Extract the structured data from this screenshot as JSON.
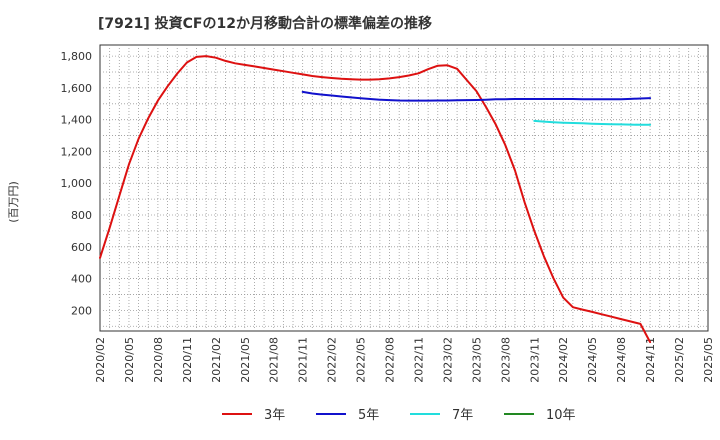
{
  "chart_data": {
    "type": "line",
    "title": "[7921]  投資CFの12か月移動合計の標準偏差の推移",
    "ylabel": "(百万円)",
    "xlabel": "",
    "ylim": [
      70,
      1870
    ],
    "yticks": [
      200,
      400,
      600,
      800,
      1000,
      1200,
      1400,
      1600,
      1800
    ],
    "ytick_labels": [
      "200",
      "400",
      "600",
      "800",
      "1,000",
      "1,200",
      "1,400",
      "1,600",
      "1,800"
    ],
    "xtick_labels": [
      "2020/02",
      "2020/05",
      "2020/08",
      "2020/11",
      "2021/02",
      "2021/05",
      "2021/08",
      "2021/11",
      "2022/02",
      "2022/05",
      "2022/08",
      "2022/11",
      "2023/02",
      "2023/05",
      "2023/08",
      "2023/11",
      "2024/02",
      "2024/05",
      "2024/08",
      "2024/11",
      "2025/02",
      "2025/05"
    ],
    "x_start": "2020/02",
    "grid": true,
    "legend_position": "bottom",
    "series": [
      {
        "name": "3年",
        "color": "#dd1111",
        "x": [
          "2020/02",
          "2020/03",
          "2020/04",
          "2020/05",
          "2020/06",
          "2020/07",
          "2020/08",
          "2020/09",
          "2020/10",
          "2020/11",
          "2020/12",
          "2021/01",
          "2021/02",
          "2021/03",
          "2021/04",
          "2021/05",
          "2021/06",
          "2021/07",
          "2021/08",
          "2021/09",
          "2021/10",
          "2021/11",
          "2021/12",
          "2022/01",
          "2022/02",
          "2022/03",
          "2022/04",
          "2022/05",
          "2022/06",
          "2022/07",
          "2022/08",
          "2022/09",
          "2022/10",
          "2022/11",
          "2022/12",
          "2023/01",
          "2023/02",
          "2023/03",
          "2023/04",
          "2023/05",
          "2023/06",
          "2023/07",
          "2023/08",
          "2023/09",
          "2023/10",
          "2023/11",
          "2023/12",
          "2024/01",
          "2024/02",
          "2024/03",
          "2024/04",
          "2024/05",
          "2024/06",
          "2024/07",
          "2024/08",
          "2024/09",
          "2024/10",
          "2024/11"
        ],
        "values": [
          530,
          720,
          920,
          1120,
          1280,
          1410,
          1520,
          1610,
          1690,
          1760,
          1795,
          1800,
          1790,
          1770,
          1755,
          1745,
          1735,
          1725,
          1715,
          1705,
          1695,
          1685,
          1675,
          1668,
          1662,
          1657,
          1654,
          1652,
          1652,
          1655,
          1660,
          1668,
          1678,
          1692,
          1718,
          1740,
          1742,
          1720,
          1650,
          1580,
          1480,
          1370,
          1240,
          1080,
          880,
          700,
          540,
          400,
          280,
          220,
          205,
          190,
          175,
          160,
          145,
          130,
          115,
          0
        ]
      },
      {
        "name": "5年",
        "color": "#1111cc",
        "x": [
          "2021/11",
          "2021/12",
          "2022/01",
          "2022/02",
          "2022/03",
          "2022/04",
          "2022/05",
          "2022/06",
          "2022/07",
          "2022/08",
          "2022/09",
          "2022/10",
          "2022/11",
          "2022/12",
          "2023/01",
          "2023/02",
          "2023/03",
          "2023/04",
          "2023/05",
          "2023/06",
          "2023/07",
          "2023/08",
          "2023/09",
          "2023/10",
          "2023/11",
          "2023/12",
          "2024/01",
          "2024/02",
          "2024/03",
          "2024/04",
          "2024/05",
          "2024/06",
          "2024/07",
          "2024/08",
          "2024/09",
          "2024/10",
          "2024/11"
        ],
        "values": [
          1575,
          1565,
          1558,
          1552,
          1546,
          1540,
          1535,
          1530,
          1526,
          1523,
          1521,
          1520,
          1520,
          1520,
          1521,
          1521,
          1522,
          1523,
          1524,
          1526,
          1528,
          1529,
          1530,
          1530,
          1530,
          1530,
          1530,
          1530,
          1530,
          1529,
          1529,
          1528,
          1528,
          1529,
          1531,
          1533,
          1536
        ]
      },
      {
        "name": "7年",
        "color": "#22dddd",
        "x": [
          "2023/11",
          "2023/12",
          "2024/01",
          "2024/02",
          "2024/03",
          "2024/04",
          "2024/05",
          "2024/06",
          "2024/07",
          "2024/08",
          "2024/09",
          "2024/10",
          "2024/11"
        ],
        "values": [
          1392,
          1388,
          1384,
          1381,
          1379,
          1377,
          1375,
          1373,
          1371,
          1370,
          1369,
          1368,
          1368
        ]
      },
      {
        "name": "10年",
        "color": "#228822",
        "x": [],
        "values": []
      }
    ]
  }
}
